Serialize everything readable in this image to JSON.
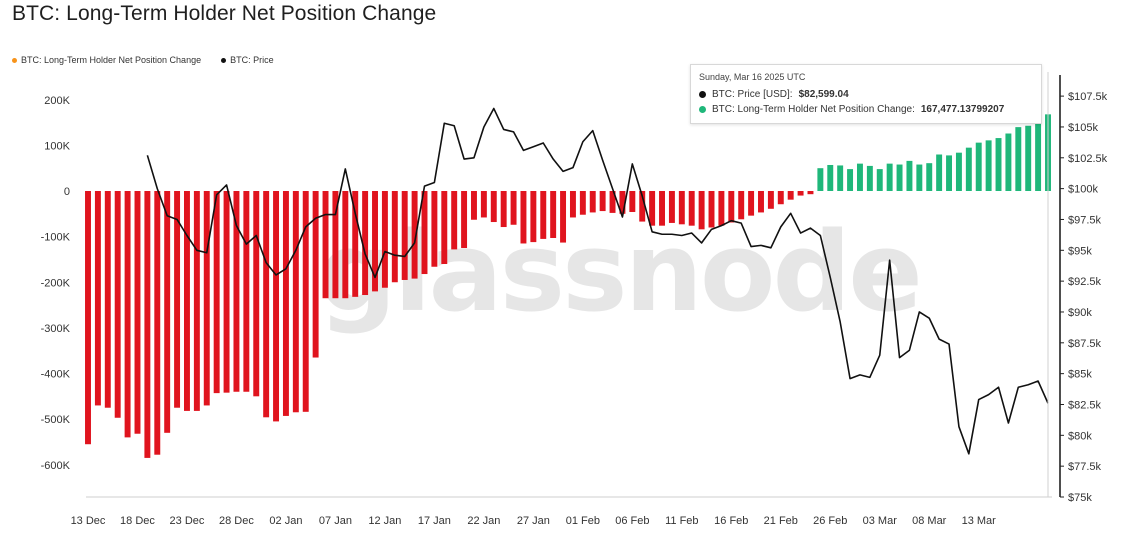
{
  "title": "BTC: Long-Term Holder Net Position Change",
  "legend": [
    {
      "label": "BTC: Long-Term Holder Net Position Change",
      "color": "#f7931a"
    },
    {
      "label": "BTC: Price",
      "color": "#111111"
    }
  ],
  "watermark": "glassnode",
  "tooltip": {
    "date": "Sunday, Mar 16 2025 UTC",
    "price_label": "BTC: Price [USD]:",
    "price_value": "$82,599.04",
    "price_color": "#111111",
    "lth_label": "BTC: Long-Term Holder Net Position Change:",
    "lth_value": "167,477.13799207",
    "lth_color": "#1fb77a"
  },
  "chart_data": {
    "type": "bar",
    "x_tick_labels": [
      "13 Dec",
      "18 Dec",
      "23 Dec",
      "28 Dec",
      "02 Jan",
      "07 Jan",
      "12 Jan",
      "17 Jan",
      "22 Jan",
      "27 Jan",
      "01 Feb",
      "06 Feb",
      "11 Feb",
      "16 Feb",
      "21 Feb",
      "26 Feb",
      "03 Mar",
      "08 Mar",
      "13 Mar"
    ],
    "y_left_ticks": [
      "200K",
      "100K",
      "0",
      "-100K",
      "-200K",
      "-300K",
      "-400K",
      "-500K",
      "-600K"
    ],
    "y_left_range": [
      -680000,
      230000
    ],
    "y_right_ticks": [
      "$107.5k",
      "$105k",
      "$102.5k",
      "$100k",
      "$97.5k",
      "$95k",
      "$92.5k",
      "$90k",
      "$87.5k",
      "$85k",
      "$82.5k",
      "$80k",
      "$77.5k",
      "$75k"
    ],
    "y_right_range": [
      75000,
      107500
    ],
    "positive_color": "#1fb77a",
    "negative_color": "#e0141e",
    "series": [
      {
        "name": "BTC: Long-Term Holder Net Position Change",
        "type": "bar",
        "values": [
          -555000,
          -470000,
          -475000,
          -497000,
          -540000,
          -532000,
          -585000,
          -578000,
          -530000,
          -475000,
          -482000,
          -482000,
          -470000,
          -443000,
          -442000,
          -440000,
          -440000,
          -450000,
          -496000,
          -505000,
          -493000,
          -485000,
          -484000,
          -365000,
          -235000,
          -235000,
          -235000,
          -232000,
          -228000,
          -220000,
          -212000,
          -200000,
          -195000,
          -192000,
          -182000,
          -166000,
          -160000,
          -128000,
          -125000,
          -63000,
          -58000,
          -68000,
          -79000,
          -74000,
          -115000,
          -112000,
          -105000,
          -103000,
          -113000,
          -58000,
          -52000,
          -47000,
          -44000,
          -48000,
          -50000,
          -46000,
          -67000,
          -76000,
          -76000,
          -70000,
          -73000,
          -76000,
          -84000,
          -80000,
          -76000,
          -69000,
          -62000,
          -54000,
          -47000,
          -39000,
          -29000,
          -19000,
          -10000,
          -7000,
          50000,
          57000,
          56000,
          48000,
          60000,
          55000,
          48000,
          60000,
          58000,
          66000,
          58000,
          61000,
          80000,
          78000,
          84000,
          95000,
          106000,
          111000,
          116000,
          126000,
          140000,
          143000,
          155000,
          168000
        ]
      },
      {
        "name": "BTC: Price",
        "type": "line",
        "unit": "USD",
        "values": [
          null,
          null,
          null,
          null,
          null,
          null,
          102700,
          100000,
          97800,
          97500,
          96200,
          95000,
          94800,
          99500,
          100300,
          97000,
          95500,
          96200,
          94000,
          93000,
          93500,
          95000,
          96900,
          97600,
          97900,
          97900,
          101600,
          98000,
          94700,
          92800,
          94900,
          94600,
          94500,
          95600,
          100200,
          100500,
          105300,
          105100,
          102400,
          102500,
          105000,
          106500,
          104800,
          104600,
          103100,
          103400,
          103700,
          102400,
          101400,
          101700,
          103800,
          104700,
          102300,
          100000,
          97700,
          102000,
          99400,
          96500,
          96300,
          96300,
          96200,
          96400,
          95600,
          96700,
          97000,
          97400,
          97200,
          95300,
          95400,
          95200,
          96900,
          98000,
          96400,
          96800,
          96200,
          92800,
          89200,
          84600,
          84900,
          84700,
          86500,
          94200,
          86300,
          86900,
          90000,
          89500,
          87800,
          87400,
          80700,
          78500,
          82900,
          83300,
          83900,
          81000,
          83900,
          84100,
          84400,
          82600
        ]
      }
    ],
    "grid": false
  }
}
